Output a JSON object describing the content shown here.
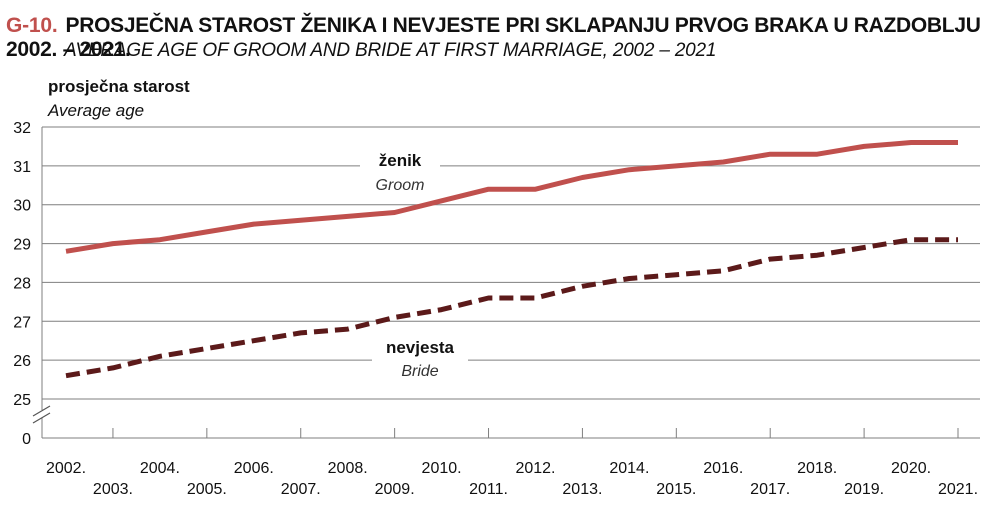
{
  "header": {
    "fig_id": "G-10.",
    "title_hr": "PROSJEČNA STAROST ŽENIKA I NEVJESTE PRI SKLAPANJU PRVOG BRAKA U RAZDOBLJU 2002. – 2021.",
    "title_en": "AVERAGE AGE OF GROOM AND BRIDE AT FIRST MARRIAGE, 2002 – 2021"
  },
  "chart_data": {
    "type": "line",
    "ylabel_hr": "prosječna starost",
    "ylabel_en": "Average age",
    "ylim": [
      25,
      32
    ],
    "axis_break_label": "0",
    "y_ticks": [
      25,
      26,
      27,
      28,
      29,
      30,
      31,
      32
    ],
    "grid": true,
    "categories": [
      "2002.",
      "2003.",
      "2004.",
      "2005.",
      "2006.",
      "2007.",
      "2008.",
      "2009.",
      "2010.",
      "2011.",
      "2012.",
      "2013.",
      "2014.",
      "2015.",
      "2016.",
      "2017.",
      "2018.",
      "2019.",
      "2020.",
      "2021."
    ],
    "series": [
      {
        "name": "ženik",
        "name_en": "Groom",
        "color": "#c0504d",
        "style": "solid",
        "values": [
          28.8,
          29.0,
          29.1,
          29.3,
          29.5,
          29.6,
          29.7,
          29.8,
          30.1,
          30.4,
          30.4,
          30.7,
          30.9,
          31.0,
          31.1,
          31.3,
          31.3,
          31.5,
          31.6,
          31.6
        ]
      },
      {
        "name": "nevjesta",
        "name_en": "Bride",
        "color": "#5c1a1a",
        "style": "dashed",
        "values": [
          25.6,
          25.8,
          26.1,
          26.3,
          26.5,
          26.7,
          26.8,
          27.1,
          27.3,
          27.6,
          27.6,
          27.9,
          28.1,
          28.2,
          28.3,
          28.6,
          28.7,
          28.9,
          29.1,
          29.1
        ]
      }
    ]
  }
}
